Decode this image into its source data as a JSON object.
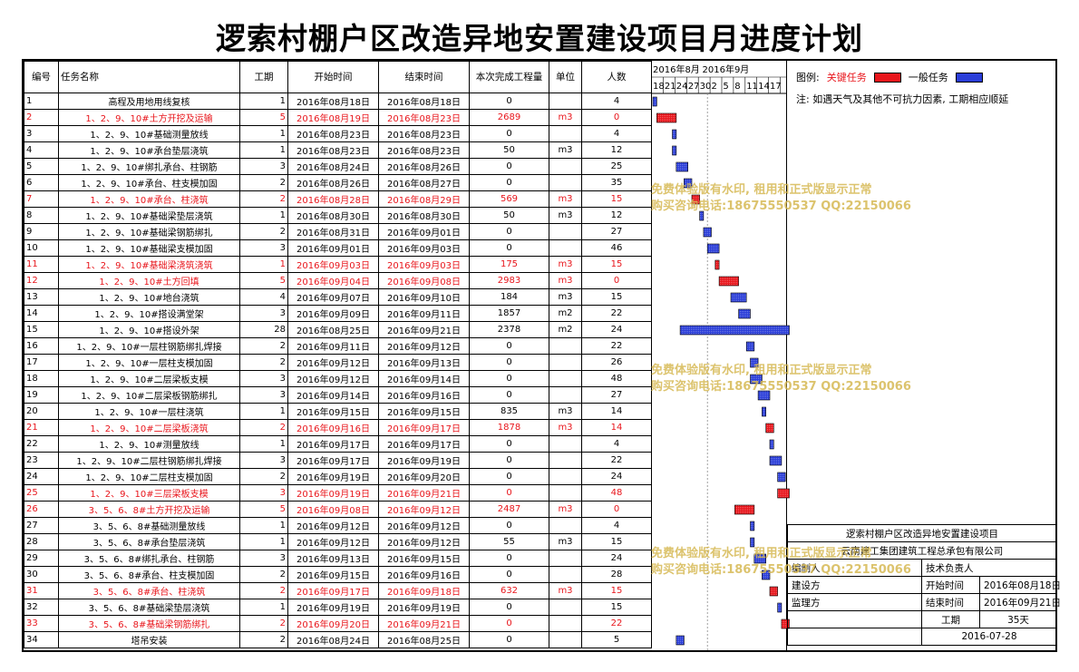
{
  "title": "逻索村棚户区改造异地安置建设项目月进度计划",
  "table": {
    "headers": [
      "编号",
      "任务名称",
      "工期",
      "开始时间",
      "结束时间",
      "本次完成工程量",
      "单位",
      "人数"
    ],
    "rows": [
      {
        "id": "1",
        "name": "高程及用地用线复核",
        "dur": "1",
        "start": "2016年08月18日",
        "end": "2016年08月18日",
        "qty": "0",
        "unit": "",
        "people": "4",
        "critical": false
      },
      {
        "id": "2",
        "name": "1、2、9、10#土方开挖及运输",
        "dur": "5",
        "start": "2016年08月19日",
        "end": "2016年08月23日",
        "qty": "2689",
        "unit": "m3",
        "people": "0",
        "critical": true
      },
      {
        "id": "3",
        "name": "1、2、9、10#基础测量放线",
        "dur": "1",
        "start": "2016年08月23日",
        "end": "2016年08月23日",
        "qty": "0",
        "unit": "",
        "people": "4",
        "critical": false
      },
      {
        "id": "4",
        "name": "1、2、9、10#承台垫层浇筑",
        "dur": "1",
        "start": "2016年08月23日",
        "end": "2016年08月23日",
        "qty": "50",
        "unit": "m3",
        "people": "12",
        "critical": false
      },
      {
        "id": "5",
        "name": "1、2、9、10#绑扎承台、柱钢筋",
        "dur": "3",
        "start": "2016年08月24日",
        "end": "2016年08月26日",
        "qty": "0",
        "unit": "",
        "people": "25",
        "critical": false
      },
      {
        "id": "6",
        "name": "1、2、9、10#承台、柱支模加固",
        "dur": "2",
        "start": "2016年08月26日",
        "end": "2016年08月27日",
        "qty": "0",
        "unit": "",
        "people": "35",
        "critical": false
      },
      {
        "id": "7",
        "name": "1、2、9、10#承台、柱浇筑",
        "dur": "2",
        "start": "2016年08月28日",
        "end": "2016年08月29日",
        "qty": "569",
        "unit": "m3",
        "people": "15",
        "critical": true
      },
      {
        "id": "8",
        "name": "1、2、9、10#基础梁垫层浇筑",
        "dur": "1",
        "start": "2016年08月30日",
        "end": "2016年08月30日",
        "qty": "50",
        "unit": "m3",
        "people": "12",
        "critical": false
      },
      {
        "id": "9",
        "name": "1、2、9、10#基础梁钢筋绑扎",
        "dur": "2",
        "start": "2016年08月31日",
        "end": "2016年09月01日",
        "qty": "0",
        "unit": "",
        "people": "27",
        "critical": false
      },
      {
        "id": "10",
        "name": "1、2、9、10#基础梁支模加固",
        "dur": "3",
        "start": "2016年09月01日",
        "end": "2016年09月03日",
        "qty": "0",
        "unit": "",
        "people": "46",
        "critical": false
      },
      {
        "id": "11",
        "name": "1、2、9、10#基础梁浇筑浇筑",
        "dur": "1",
        "start": "2016年09月03日",
        "end": "2016年09月03日",
        "qty": "175",
        "unit": "m3",
        "people": "15",
        "critical": true
      },
      {
        "id": "12",
        "name": "1、2、9、10#土方回填",
        "dur": "5",
        "start": "2016年09月04日",
        "end": "2016年09月08日",
        "qty": "2983",
        "unit": "m3",
        "people": "0",
        "critical": true
      },
      {
        "id": "13",
        "name": "1、2、9、10#地台浇筑",
        "dur": "4",
        "start": "2016年09月07日",
        "end": "2016年09月10日",
        "qty": "184",
        "unit": "m3",
        "people": "15",
        "critical": false
      },
      {
        "id": "14",
        "name": "1、2、9、10#搭设满堂架",
        "dur": "3",
        "start": "2016年09月09日",
        "end": "2016年09月11日",
        "qty": "1857",
        "unit": "m2",
        "people": "22",
        "critical": false
      },
      {
        "id": "15",
        "name": "1、2、9、10#搭设外架",
        "dur": "28",
        "start": "2016年08月25日",
        "end": "2016年09月21日",
        "qty": "2378",
        "unit": "m2",
        "people": "24",
        "critical": false
      },
      {
        "id": "16",
        "name": "1、2、9、10#一层柱钢筋绑扎焊接",
        "dur": "2",
        "start": "2016年09月11日",
        "end": "2016年09月12日",
        "qty": "0",
        "unit": "",
        "people": "22",
        "critical": false
      },
      {
        "id": "17",
        "name": "1、2、9、10#一层柱支模加固",
        "dur": "2",
        "start": "2016年09月12日",
        "end": "2016年09月13日",
        "qty": "0",
        "unit": "",
        "people": "26",
        "critical": false
      },
      {
        "id": "18",
        "name": "1、2、9、10#二层梁板支模",
        "dur": "3",
        "start": "2016年09月12日",
        "end": "2016年09月14日",
        "qty": "0",
        "unit": "",
        "people": "48",
        "critical": false
      },
      {
        "id": "19",
        "name": "1、2、9、10#二层梁板钢筋绑扎",
        "dur": "3",
        "start": "2016年09月14日",
        "end": "2016年09月16日",
        "qty": "0",
        "unit": "",
        "people": "27",
        "critical": false
      },
      {
        "id": "20",
        "name": "1、2、9、10#一层柱浇筑",
        "dur": "1",
        "start": "2016年09月15日",
        "end": "2016年09月15日",
        "qty": "835",
        "unit": "m3",
        "people": "14",
        "critical": false
      },
      {
        "id": "21",
        "name": "1、2、9、10#二层梁板浇筑",
        "dur": "2",
        "start": "2016年09月16日",
        "end": "2016年09月17日",
        "qty": "1878",
        "unit": "m3",
        "people": "14",
        "critical": true
      },
      {
        "id": "22",
        "name": "1、2、9、10#测量放线",
        "dur": "1",
        "start": "2016年09月17日",
        "end": "2016年09月17日",
        "qty": "0",
        "unit": "",
        "people": "4",
        "critical": false
      },
      {
        "id": "23",
        "name": "1、2、9、10#二层柱钢筋绑扎焊接",
        "dur": "3",
        "start": "2016年09月17日",
        "end": "2016年09月19日",
        "qty": "0",
        "unit": "",
        "people": "22",
        "critical": false
      },
      {
        "id": "24",
        "name": "1、2、9、10#二层柱支模加固",
        "dur": "2",
        "start": "2016年09月19日",
        "end": "2016年09月20日",
        "qty": "0",
        "unit": "",
        "people": "24",
        "critical": false
      },
      {
        "id": "25",
        "name": "1、2、9、10#三层梁板支模",
        "dur": "3",
        "start": "2016年09月19日",
        "end": "2016年09月21日",
        "qty": "0",
        "unit": "",
        "people": "48",
        "critical": true
      },
      {
        "id": "26",
        "name": "3、5、6、8#土方开挖及运输",
        "dur": "5",
        "start": "2016年09月08日",
        "end": "2016年09月12日",
        "qty": "2487",
        "unit": "m3",
        "people": "0",
        "critical": true
      },
      {
        "id": "27",
        "name": "3、5、6、8#基础测量放线",
        "dur": "1",
        "start": "2016年09月12日",
        "end": "2016年09月12日",
        "qty": "0",
        "unit": "",
        "people": "4",
        "critical": false
      },
      {
        "id": "28",
        "name": "3、5、6、8#承台垫层浇筑",
        "dur": "1",
        "start": "2016年09月12日",
        "end": "2016年09月12日",
        "qty": "55",
        "unit": "m3",
        "people": "15",
        "critical": false
      },
      {
        "id": "29",
        "name": "3、5、6、8#绑扎承台、柱钢筋",
        "dur": "3",
        "start": "2016年09月13日",
        "end": "2016年09月15日",
        "qty": "0",
        "unit": "",
        "people": "24",
        "critical": false
      },
      {
        "id": "30",
        "name": "3、5、6、8#承台、柱支模加固",
        "dur": "2",
        "start": "2016年09月15日",
        "end": "2016年09月16日",
        "qty": "0",
        "unit": "",
        "people": "28",
        "critical": false
      },
      {
        "id": "31",
        "name": "3、5、6、8#承台、柱浇筑",
        "dur": "2",
        "start": "2016年09月17日",
        "end": "2016年09月18日",
        "qty": "632",
        "unit": "m3",
        "people": "15",
        "critical": true
      },
      {
        "id": "32",
        "name": "3、5、6、8#基础梁垫层浇筑",
        "dur": "1",
        "start": "2016年09月19日",
        "end": "2016年09月19日",
        "qty": "0",
        "unit": "",
        "people": "15",
        "critical": false
      },
      {
        "id": "33",
        "name": "3、5、6、8#基础梁钢筋绑扎",
        "dur": "2",
        "start": "2016年09月20日",
        "end": "2016年09月21日",
        "qty": "0",
        "unit": "",
        "people": "22",
        "critical": true
      },
      {
        "id": "34",
        "name": "塔吊安装",
        "dur": "2",
        "start": "2016年08月24日",
        "end": "2016年08月25日",
        "qty": "0",
        "unit": "",
        "people": "5",
        "critical": false
      }
    ]
  },
  "chart_data": {
    "type": "gantt",
    "x_start": "2016-08-18",
    "x_end": "2016-09-21",
    "month_labels": [
      "2016年8月",
      "2016年9月"
    ],
    "tick_labels": [
      "18",
      "21",
      "24",
      "27",
      "30",
      "2",
      "5",
      "8",
      "11",
      "14",
      "17"
    ],
    "tick_dates": [
      "2016-08-18",
      "2016-08-21",
      "2016-08-24",
      "2016-08-27",
      "2016-08-30",
      "2016-09-02",
      "2016-09-05",
      "2016-09-08",
      "2016-09-11",
      "2016-09-14",
      "2016-09-17"
    ],
    "colors": {
      "critical": "#e8151b",
      "normal": "#2a3dd8"
    },
    "tasks": [
      {
        "start": "2016-08-18",
        "end": "2016-08-18",
        "critical": false
      },
      {
        "start": "2016-08-19",
        "end": "2016-08-23",
        "critical": true
      },
      {
        "start": "2016-08-23",
        "end": "2016-08-23",
        "critical": false
      },
      {
        "start": "2016-08-23",
        "end": "2016-08-23",
        "critical": false
      },
      {
        "start": "2016-08-24",
        "end": "2016-08-26",
        "critical": false
      },
      {
        "start": "2016-08-26",
        "end": "2016-08-27",
        "critical": false
      },
      {
        "start": "2016-08-28",
        "end": "2016-08-29",
        "critical": true
      },
      {
        "start": "2016-08-30",
        "end": "2016-08-30",
        "critical": false
      },
      {
        "start": "2016-08-31",
        "end": "2016-09-01",
        "critical": false
      },
      {
        "start": "2016-09-01",
        "end": "2016-09-03",
        "critical": false
      },
      {
        "start": "2016-09-03",
        "end": "2016-09-03",
        "critical": true
      },
      {
        "start": "2016-09-04",
        "end": "2016-09-08",
        "critical": true
      },
      {
        "start": "2016-09-07",
        "end": "2016-09-10",
        "critical": false
      },
      {
        "start": "2016-09-09",
        "end": "2016-09-11",
        "critical": false
      },
      {
        "start": "2016-08-25",
        "end": "2016-09-21",
        "critical": false
      },
      {
        "start": "2016-09-11",
        "end": "2016-09-12",
        "critical": false
      },
      {
        "start": "2016-09-12",
        "end": "2016-09-13",
        "critical": false
      },
      {
        "start": "2016-09-12",
        "end": "2016-09-14",
        "critical": false
      },
      {
        "start": "2016-09-14",
        "end": "2016-09-16",
        "critical": false
      },
      {
        "start": "2016-09-15",
        "end": "2016-09-15",
        "critical": false
      },
      {
        "start": "2016-09-16",
        "end": "2016-09-17",
        "critical": true
      },
      {
        "start": "2016-09-17",
        "end": "2016-09-17",
        "critical": false
      },
      {
        "start": "2016-09-17",
        "end": "2016-09-19",
        "critical": false
      },
      {
        "start": "2016-09-19",
        "end": "2016-09-20",
        "critical": false
      },
      {
        "start": "2016-09-19",
        "end": "2016-09-21",
        "critical": true
      },
      {
        "start": "2016-09-08",
        "end": "2016-09-12",
        "critical": true
      },
      {
        "start": "2016-09-12",
        "end": "2016-09-12",
        "critical": false
      },
      {
        "start": "2016-09-12",
        "end": "2016-09-12",
        "critical": false
      },
      {
        "start": "2016-09-13",
        "end": "2016-09-15",
        "critical": false
      },
      {
        "start": "2016-09-15",
        "end": "2016-09-16",
        "critical": false
      },
      {
        "start": "2016-09-17",
        "end": "2016-09-18",
        "critical": true
      },
      {
        "start": "2016-09-19",
        "end": "2016-09-19",
        "critical": false
      },
      {
        "start": "2016-09-20",
        "end": "2016-09-21",
        "critical": true
      },
      {
        "start": "2016-08-24",
        "end": "2016-08-25",
        "critical": false
      }
    ]
  },
  "legend": {
    "label": "图例:",
    "critical_label": "关键任务",
    "normal_label": "一般任务",
    "note": "注: 如遇天气及其他不可抗力因素, 工期相应顺延"
  },
  "info": {
    "project": "逻索村棚户区改造异地安置建设项目",
    "company": "云南建工集团建筑工程总承包有限公司",
    "compiler_label": "编制人",
    "compiler_value": "",
    "tech_label": "技术负责人",
    "tech_value": "",
    "owner_label": "建设方",
    "owner_value": "",
    "start_label": "开始时间",
    "start_value": "2016年08月18日",
    "supervisor_label": "监理方",
    "supervisor_value": "",
    "end_label": "结束时间",
    "end_value": "2016年09月21日",
    "duration_label": "工期",
    "duration_value": "35天",
    "date": "2016-07-28"
  },
  "watermark": {
    "line1": "免费体验版有水印, 租用和正式版显示正常",
    "line2": "购买咨询电话:18675550537 QQ:22150066"
  }
}
